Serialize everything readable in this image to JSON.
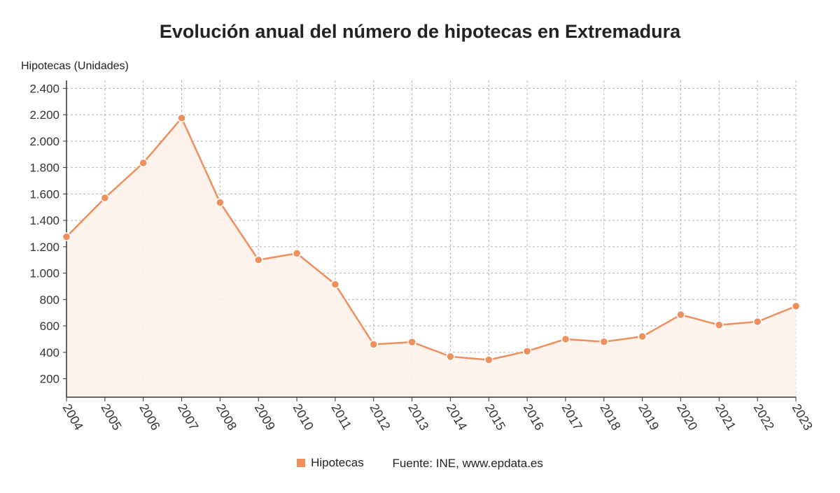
{
  "chart_data": {
    "type": "line",
    "title": "Evolución anual del número de hipotecas en Extremadura",
    "ylabel": "Hipotecas (Unidades)",
    "xlabel": "",
    "x": [
      "2004",
      "2005",
      "2006",
      "2007",
      "2008",
      "2009",
      "2010",
      "2011",
      "2012",
      "2013",
      "2014",
      "2015",
      "2016",
      "2017",
      "2018",
      "2019",
      "2020",
      "2021",
      "2022",
      "2023"
    ],
    "series": [
      {
        "name": "Hipotecas",
        "values": [
          1275,
          1570,
          1835,
          2175,
          1535,
          1100,
          1150,
          915,
          460,
          478,
          368,
          343,
          408,
          500,
          480,
          520,
          685,
          607,
          632,
          750
        ]
      }
    ],
    "ylim": [
      60,
      2460
    ],
    "yticks": [
      200,
      400,
      600,
      800,
      1000,
      1200,
      1400,
      1600,
      1800,
      2000,
      2200,
      2400
    ],
    "ytick_labels": [
      "200",
      "400",
      "600",
      "800",
      "1.000",
      "1.200",
      "1.400",
      "1.600",
      "1.800",
      "2.000",
      "2.200",
      "2.400"
    ],
    "grid": true,
    "legend_position": "bottom",
    "source": "Fuente: INE, www.epdata.es",
    "colors": {
      "line": "#ee8f5c",
      "fill": "#fdf1ea",
      "grid": "#b4b4b4",
      "axis": "#333333"
    }
  }
}
